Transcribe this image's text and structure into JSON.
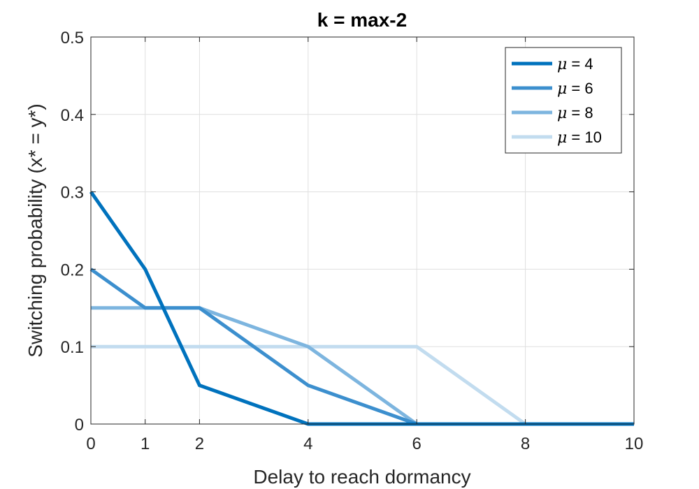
{
  "chart_data": {
    "type": "line",
    "title": "k = max-2",
    "xlabel": "Delay to reach dormancy",
    "ylabel": "Switching probability (x* = y*)",
    "xlim": [
      0,
      10
    ],
    "ylim": [
      0,
      0.5
    ],
    "xticks": [
      0,
      1,
      2,
      4,
      6,
      8,
      10
    ],
    "xtick_labels": [
      "0",
      "1",
      "2",
      "4",
      "6",
      "8",
      "10"
    ],
    "yticks": [
      0,
      0.1,
      0.2,
      0.3,
      0.4,
      0.5
    ],
    "ytick_labels": [
      "0",
      "0.1",
      "0.2",
      "0.3",
      "0.4",
      "0.5"
    ],
    "grid": true,
    "legend_position": "top-right",
    "x": [
      0,
      1,
      2,
      4,
      6,
      8,
      10
    ],
    "series": [
      {
        "name": "μ = 4",
        "mu": "μ",
        "rest": " = 4",
        "color": "#0072BD",
        "values": [
          0.3,
          0.2,
          0.05,
          0,
          0,
          0,
          0
        ]
      },
      {
        "name": "μ = 6",
        "mu": "μ",
        "rest": " = 6",
        "color": "#3C8FCE",
        "values": [
          0.2,
          0.15,
          0.15,
          0.05,
          0,
          0,
          0
        ]
      },
      {
        "name": "μ = 8",
        "mu": "μ",
        "rest": " = 8",
        "color": "#7DB5DF",
        "values": [
          0.15,
          0.15,
          0.15,
          0.1,
          0,
          0,
          0
        ]
      },
      {
        "name": "μ = 10",
        "mu": "μ",
        "rest": " = 10",
        "color": "#C2DCEF",
        "values": [
          0.1,
          0.1,
          0.1,
          0.1,
          0.1,
          0,
          0
        ]
      }
    ]
  }
}
